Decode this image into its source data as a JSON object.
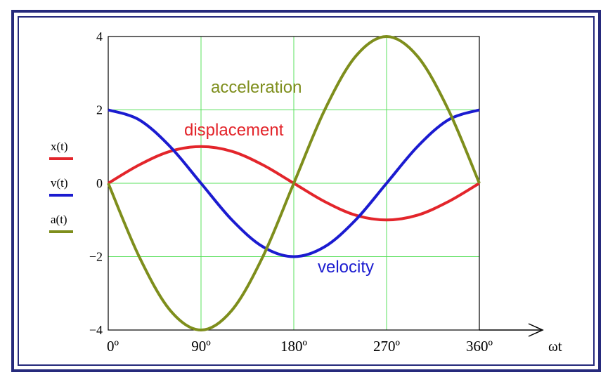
{
  "chart_data": {
    "type": "line",
    "xlabel": "ωt",
    "x_tick_labels": [
      "0º",
      "90º",
      "180º",
      "270º",
      "360º"
    ],
    "x_ticks": [
      0,
      90,
      180,
      270,
      360
    ],
    "xlim": [
      0,
      360
    ],
    "y_tick_labels": [
      "4",
      "2",
      "0",
      "−2",
      "−4"
    ],
    "y_ticks": [
      4,
      2,
      0,
      -2,
      -4
    ],
    "ylim": [
      -4,
      4
    ],
    "grid": true,
    "legend_position": "left",
    "x": [
      0,
      30,
      60,
      90,
      120,
      150,
      180,
      210,
      240,
      270,
      300,
      330,
      360
    ],
    "series": [
      {
        "name": "x(t)",
        "color": "#e3252b",
        "values": [
          0,
          0.5,
          0.87,
          1,
          0.87,
          0.5,
          0,
          -0.5,
          -0.87,
          -1,
          -0.87,
          -0.5,
          0
        ]
      },
      {
        "name": "v(t)",
        "color": "#1b1bd0",
        "values": [
          2,
          1.73,
          1,
          0,
          -1,
          -1.73,
          -2,
          -1.73,
          -1,
          0,
          1,
          1.73,
          2
        ]
      },
      {
        "name": "a(t)",
        "color": "#7e8e1c",
        "values": [
          0,
          -2,
          -3.46,
          -4,
          -3.46,
          -2,
          0,
          2,
          3.46,
          4,
          3.46,
          2,
          0
        ]
      }
    ],
    "annotations": [
      {
        "text": "acceleration",
        "color": "#7e8e1c"
      },
      {
        "text": "displacement",
        "color": "#e3252b"
      },
      {
        "text": "velocity",
        "color": "#1b1bd0"
      }
    ]
  }
}
